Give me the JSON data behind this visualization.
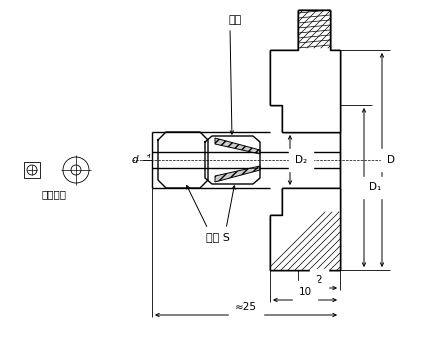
{
  "bg_color": "#ffffff",
  "label_kassette": "卡套",
  "label_fixed": "固定卡套",
  "label_wrench": "板手 S",
  "label_d": "d",
  "label_D2": "D₂",
  "label_D1": "D₁",
  "label_D": "D",
  "dim_2": "2",
  "dim_10": "10",
  "dim_25": "≈25"
}
